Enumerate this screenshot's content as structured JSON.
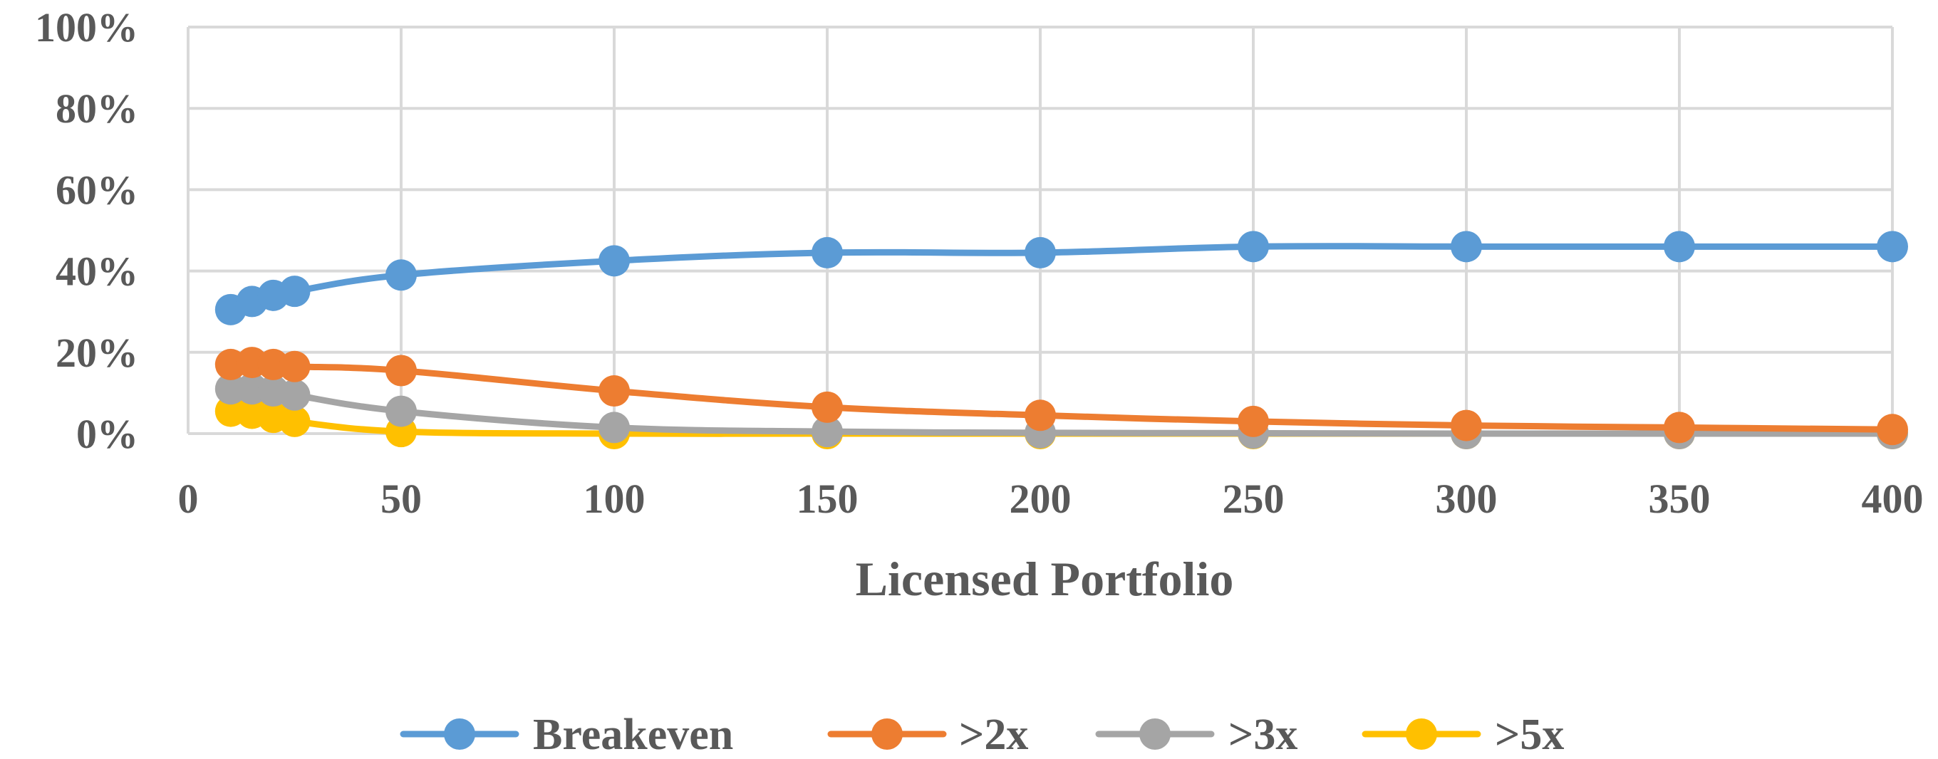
{
  "chart_data": {
    "type": "line",
    "title": "",
    "xlabel": "Licensed Portfolio",
    "ylabel": "",
    "xlim": [
      0,
      400
    ],
    "ylim": [
      0,
      100
    ],
    "x_ticks": [
      0,
      50,
      100,
      150,
      200,
      250,
      300,
      350,
      400
    ],
    "x_tick_labels": [
      "0",
      "50",
      "100",
      "150",
      "200",
      "250",
      "300",
      "350",
      "400"
    ],
    "y_ticks": [
      0,
      20,
      40,
      60,
      80,
      100
    ],
    "y_tick_labels": [
      "0%",
      "20%",
      "40%",
      "60%",
      "80%",
      "100%"
    ],
    "grid": true,
    "legend_position": "bottom",
    "x": [
      10,
      15,
      20,
      25,
      50,
      100,
      150,
      200,
      250,
      300,
      350,
      400
    ],
    "series": [
      {
        "name": "Breakeven",
        "color": "#5B9BD5",
        "values": [
          30.5,
          32.5,
          34,
          35,
          39,
          42.5,
          44.5,
          44.5,
          46,
          46,
          46,
          46
        ]
      },
      {
        "name": ">2x",
        "color": "#ED7D31",
        "values": [
          17,
          17.5,
          17,
          16.5,
          15.5,
          10.5,
          6.5,
          4.5,
          3,
          2,
          1.5,
          1
        ]
      },
      {
        "name": ">3x",
        "color": "#A5A5A5",
        "values": [
          11,
          11,
          10.5,
          9.5,
          5.5,
          1.5,
          0.5,
          0.2,
          0.1,
          0,
          0,
          0
        ]
      },
      {
        "name": ">5x",
        "color": "#FFC000",
        "values": [
          5.5,
          5,
          4,
          3,
          0.5,
          0,
          0,
          0,
          0,
          0,
          0,
          0
        ]
      }
    ]
  }
}
